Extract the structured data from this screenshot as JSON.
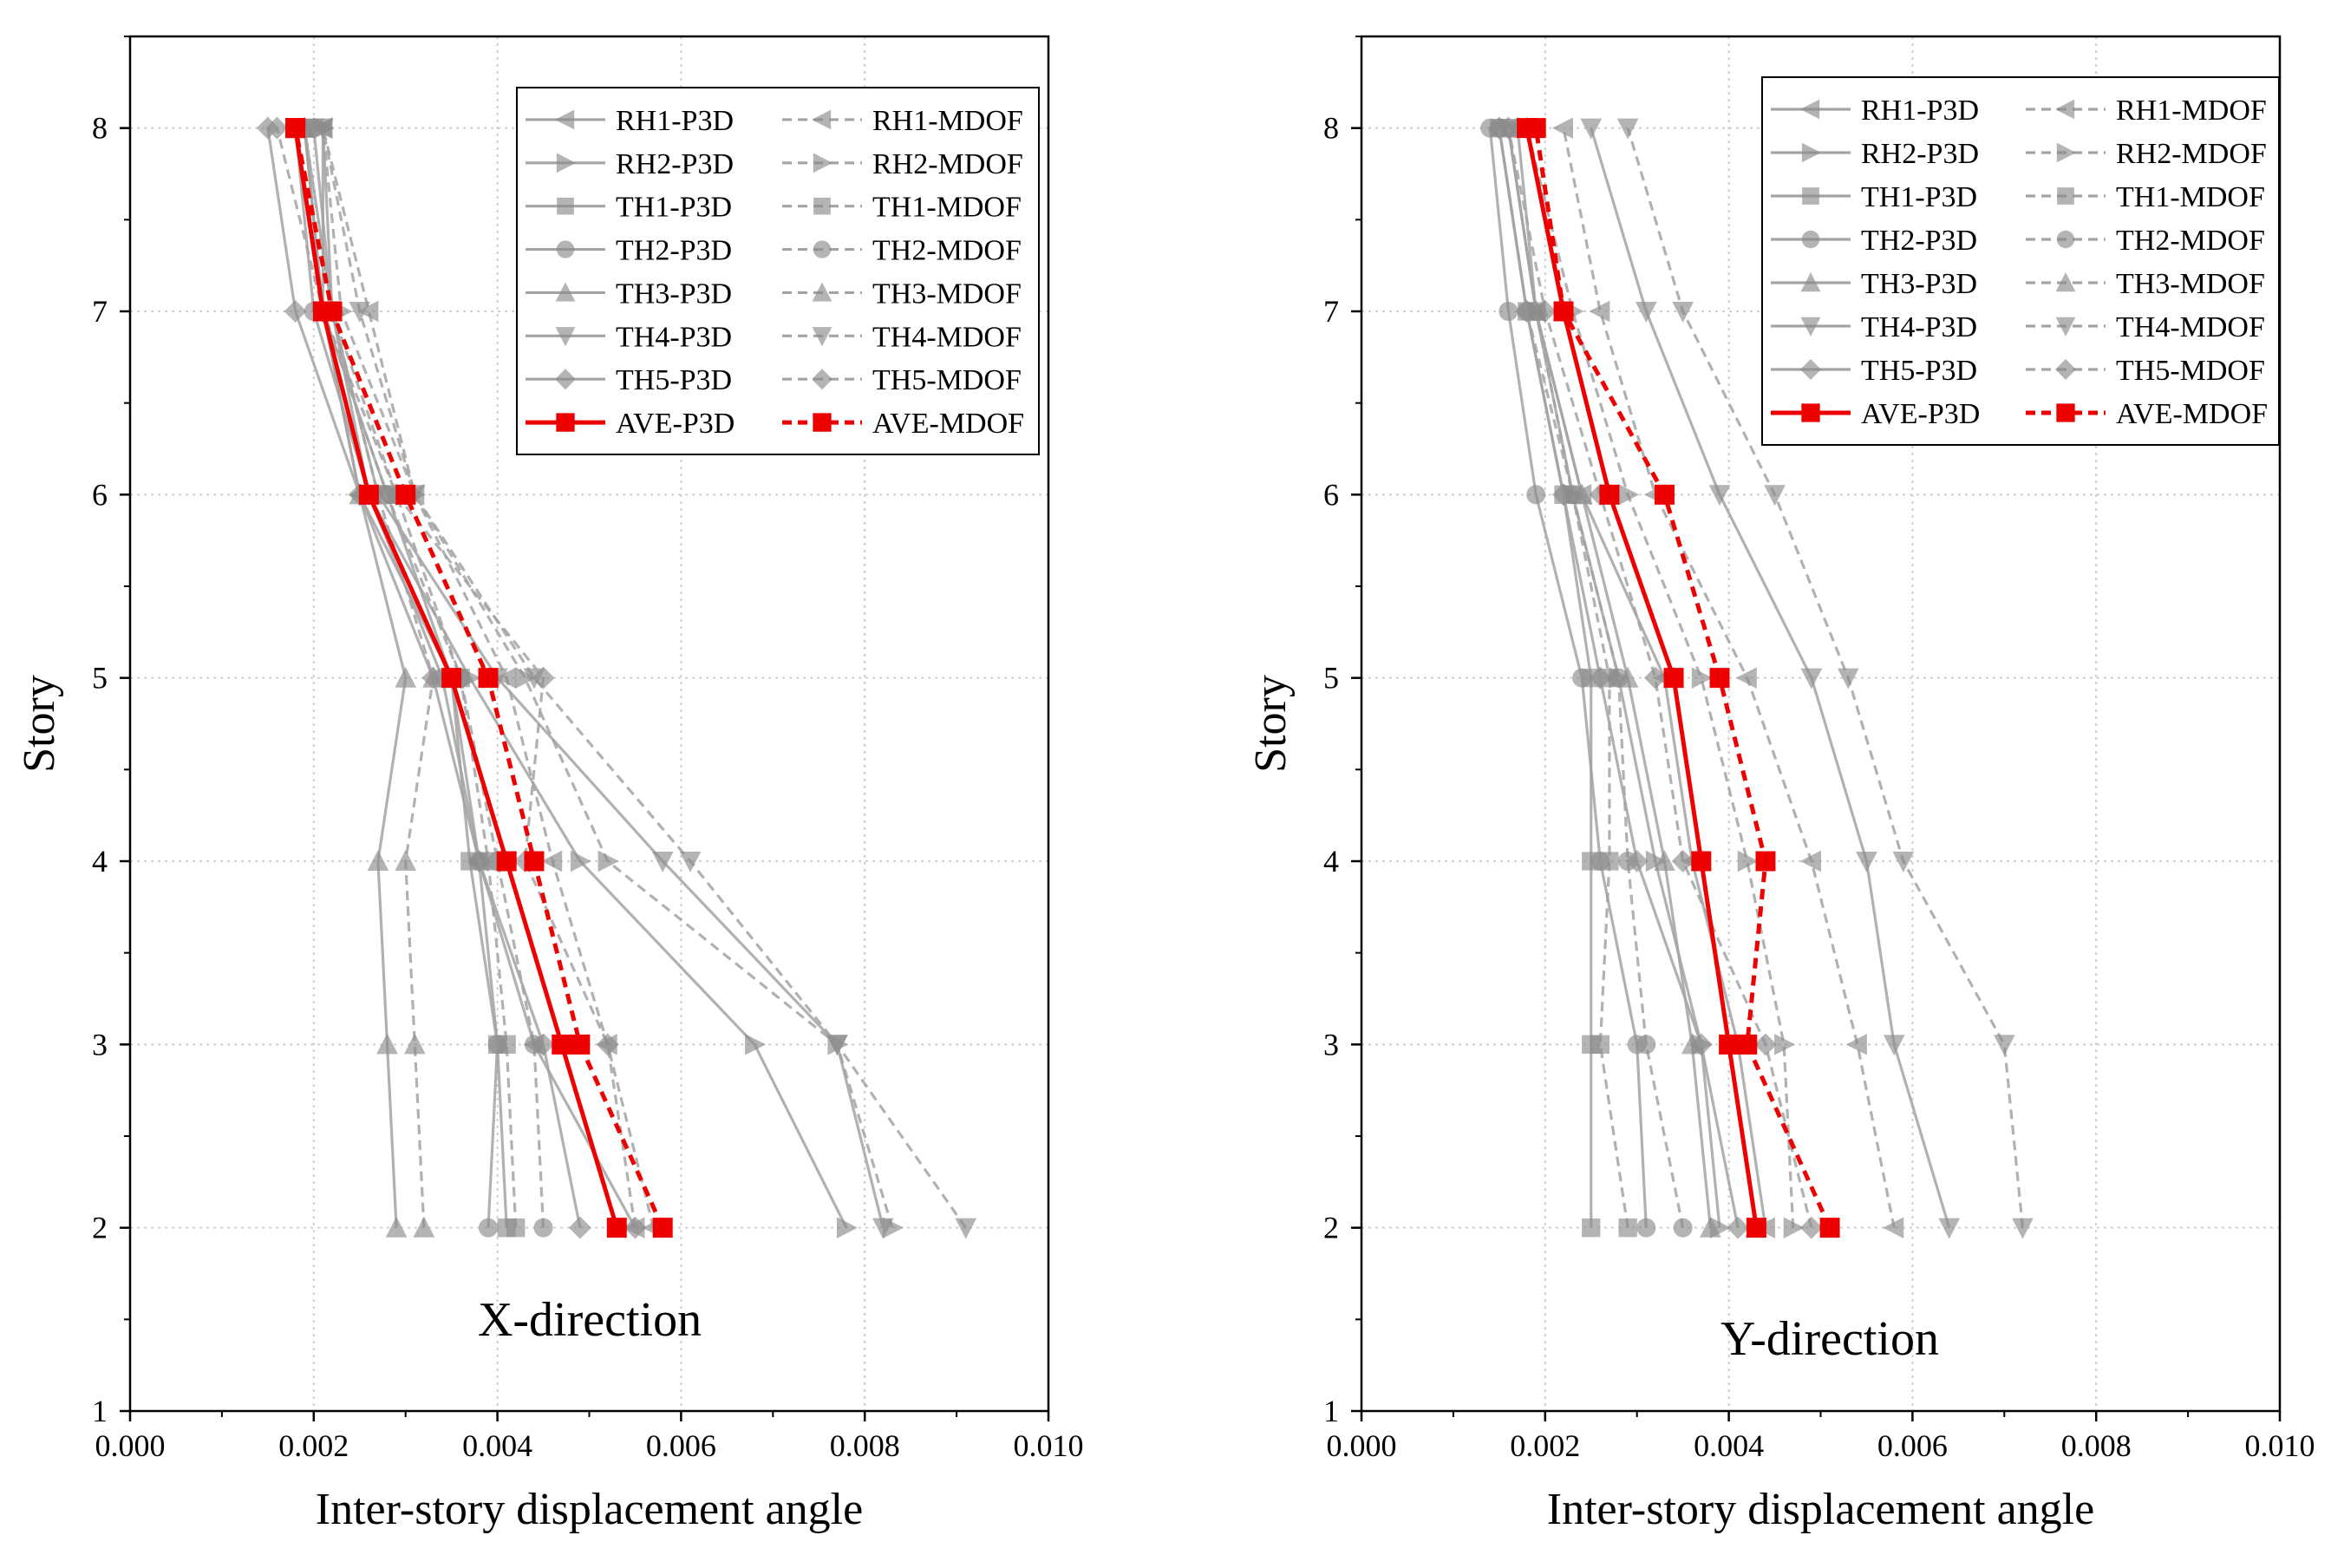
{
  "colors": {
    "gray": "#a3a3a3",
    "gray_marker": "#8c8c8c",
    "dark": "#2a2a2a",
    "red": "#ee0000",
    "grid": "#cfcfcf"
  },
  "chart_data": [
    {
      "type": "line",
      "annotation": "X-direction",
      "xlabel": "Inter-story displacement angle",
      "ylabel": "Story",
      "xlim": [
        0,
        0.01
      ],
      "ylim": [
        1,
        8.5
      ],
      "xticks": [
        "0.000",
        "0.002",
        "0.004",
        "0.006",
        "0.008",
        "0.010"
      ],
      "yticks": [
        "1",
        "2",
        "3",
        "4",
        "5",
        "6",
        "7",
        "8"
      ],
      "grid": true,
      "legend_position": "top-right",
      "stories": [
        2,
        3,
        4,
        5,
        6,
        7,
        8
      ],
      "series": [
        {
          "name": "RH1-P3D",
          "marker": "triangle-left",
          "style": "solid",
          "values": [
            0.0055,
            0.0044,
            0.0038,
            0.0035,
            0.0025,
            0.0021,
            0.0021
          ]
        },
        {
          "name": "RH1-MDOF",
          "marker": "triangle-left",
          "style": "dashed",
          "values": [
            0.0057,
            0.0052,
            0.0046,
            0.0041,
            0.0031,
            0.0026,
            0.0021
          ]
        },
        {
          "name": "RH2-P3D",
          "marker": "triangle-right",
          "style": "solid",
          "values": [
            0.0078,
            0.0068,
            0.0049,
            0.0037,
            0.0026,
            0.0022,
            0.0021
          ]
        },
        {
          "name": "RH2-MDOF",
          "marker": "triangle-right",
          "style": "dashed",
          "values": [
            0.0083,
            0.0077,
            0.0052,
            0.0043,
            0.0031,
            0.0023,
            0.0021
          ]
        },
        {
          "name": "TH1-P3D",
          "marker": "square",
          "style": "solid",
          "values": [
            0.0041,
            0.004,
            0.0037,
            0.0035,
            0.0028,
            0.0021,
            0.0019
          ]
        },
        {
          "name": "TH1-MDOF",
          "marker": "square",
          "style": "dashed",
          "values": [
            0.0042,
            0.0041,
            0.0039,
            0.0036,
            0.0029,
            0.0022,
            0.0019
          ]
        },
        {
          "name": "TH2-P3D",
          "marker": "circle",
          "style": "solid",
          "values": [
            0.0039,
            0.004,
            0.0038,
            0.0034,
            0.0026,
            0.002,
            0.0018
          ]
        },
        {
          "name": "TH2-MDOF",
          "marker": "circle",
          "style": "dashed",
          "values": [
            0.0045,
            0.0044,
            0.004,
            0.0036,
            0.0028,
            0.0021,
            0.0018
          ]
        },
        {
          "name": "TH3-P3D",
          "marker": "triangle-up",
          "style": "solid",
          "values": [
            0.0029,
            0.0028,
            0.0027,
            0.003,
            0.0025,
            0.0021,
            0.0019
          ]
        },
        {
          "name": "TH3-MDOF",
          "marker": "triangle-up",
          "style": "dashed",
          "values": [
            0.0032,
            0.0031,
            0.003,
            0.0033,
            0.0027,
            0.0022,
            0.0019
          ]
        },
        {
          "name": "TH4-P3D",
          "marker": "triangle-down",
          "style": "solid",
          "values": [
            0.0082,
            0.0077,
            0.0058,
            0.004,
            0.0027,
            0.0022,
            0.002
          ]
        },
        {
          "name": "TH4-MDOF",
          "marker": "triangle-down",
          "style": "dashed",
          "values": [
            0.0091,
            0.0077,
            0.0061,
            0.0044,
            0.0031,
            0.0025,
            0.0021
          ]
        },
        {
          "name": "TH5-P3D",
          "marker": "diamond",
          "style": "solid",
          "values": [
            0.0049,
            0.0045,
            0.0038,
            0.0033,
            0.0025,
            0.0018,
            0.0015
          ]
        },
        {
          "name": "TH5-MDOF",
          "marker": "diamond",
          "style": "dashed",
          "values": [
            0.0055,
            0.0052,
            0.0043,
            0.0045,
            0.0029,
            0.0021,
            0.0016
          ]
        },
        {
          "name": "AVE-P3D",
          "marker": "square",
          "style": "solid",
          "emphasis": true,
          "values": [
            0.0053,
            0.0047,
            0.0041,
            0.0035,
            0.0026,
            0.0021,
            0.0018
          ]
        },
        {
          "name": "AVE-MDOF",
          "marker": "square",
          "style": "dashed",
          "emphasis": true,
          "values": [
            0.0058,
            0.0049,
            0.0044,
            0.0039,
            0.003,
            0.0022,
            0.0018
          ]
        }
      ]
    },
    {
      "type": "line",
      "annotation": "Y-direction",
      "xlabel": "Inter-story displacement angle",
      "ylabel": "Story",
      "xlim": [
        0,
        0.01
      ],
      "ylim": [
        1,
        8.5
      ],
      "xticks": [
        "0.000",
        "0.002",
        "0.004",
        "0.006",
        "0.008",
        "0.010"
      ],
      "yticks": [
        "1",
        "2",
        "3",
        "4",
        "5",
        "6",
        "7",
        "8"
      ],
      "grid": true,
      "legend_position": "top-right",
      "stories": [
        2,
        3,
        4,
        5,
        6,
        7,
        8
      ],
      "series": [
        {
          "name": "RH1-P3D",
          "marker": "triangle-left",
          "style": "solid",
          "values": [
            0.0044,
            0.0041,
            0.0036,
            0.0033,
            0.0024,
            0.0019,
            0.0016
          ]
        },
        {
          "name": "RH1-MDOF",
          "marker": "triangle-left",
          "style": "dashed",
          "values": [
            0.0058,
            0.0054,
            0.0049,
            0.0042,
            0.0032,
            0.0026,
            0.0022
          ]
        },
        {
          "name": "RH2-P3D",
          "marker": "triangle-right",
          "style": "solid",
          "values": [
            0.0039,
            0.0037,
            0.0032,
            0.0028,
            0.0023,
            0.0019,
            0.0016
          ]
        },
        {
          "name": "RH2-MDOF",
          "marker": "triangle-right",
          "style": "dashed",
          "values": [
            0.0047,
            0.0046,
            0.0042,
            0.0037,
            0.0029,
            0.0023,
            0.0018
          ]
        },
        {
          "name": "TH1-P3D",
          "marker": "square",
          "style": "solid",
          "values": [
            0.0025,
            0.0025,
            0.0025,
            0.0025,
            0.0022,
            0.0018,
            0.0015
          ]
        },
        {
          "name": "TH1-MDOF",
          "marker": "square",
          "style": "dashed",
          "values": [
            0.0029,
            0.0026,
            0.0027,
            0.0027,
            0.0023,
            0.0019,
            0.0016
          ]
        },
        {
          "name": "TH2-P3D",
          "marker": "circle",
          "style": "solid",
          "values": [
            0.0031,
            0.003,
            0.0026,
            0.0024,
            0.0019,
            0.0016,
            0.0014
          ]
        },
        {
          "name": "TH2-MDOF",
          "marker": "circle",
          "style": "dashed",
          "values": [
            0.0035,
            0.0031,
            0.0029,
            0.0028,
            0.0023,
            0.0018,
            0.0015
          ]
        },
        {
          "name": "TH3-P3D",
          "marker": "triangle-up",
          "style": "solid",
          "values": [
            0.0038,
            0.0036,
            0.0033,
            0.0029,
            0.0024,
            0.0019,
            0.0017
          ]
        },
        {
          "name": "TH3-MDOF",
          "marker": "triangle-up",
          "style": "dashed",
          "values": [
            0.0043,
            0.004,
            0.0037,
            0.0034,
            0.0027,
            0.0022,
            0.0018
          ]
        },
        {
          "name": "TH4-P3D",
          "marker": "triangle-down",
          "style": "solid",
          "values": [
            0.0064,
            0.0058,
            0.0055,
            0.0049,
            0.0039,
            0.0031,
            0.0025
          ]
        },
        {
          "name": "TH4-MDOF",
          "marker": "triangle-down",
          "style": "dashed",
          "values": [
            0.0072,
            0.007,
            0.0059,
            0.0053,
            0.0045,
            0.0035,
            0.0029
          ]
        },
        {
          "name": "TH5-P3D",
          "marker": "diamond",
          "style": "solid",
          "values": [
            0.0041,
            0.0037,
            0.003,
            0.0026,
            0.0022,
            0.0018,
            0.0015
          ]
        },
        {
          "name": "TH5-MDOF",
          "marker": "diamond",
          "style": "dashed",
          "values": [
            0.0049,
            0.0044,
            0.0035,
            0.0032,
            0.0026,
            0.002,
            0.0016
          ]
        },
        {
          "name": "AVE-P3D",
          "marker": "square",
          "style": "solid",
          "emphasis": true,
          "values": [
            0.0043,
            0.004,
            0.0037,
            0.0034,
            0.0027,
            0.0022,
            0.0018
          ]
        },
        {
          "name": "AVE-MDOF",
          "marker": "square",
          "style": "dashed",
          "emphasis": true,
          "values": [
            0.0051,
            0.0042,
            0.0044,
            0.0039,
            0.0033,
            0.0022,
            0.0019
          ]
        }
      ]
    }
  ]
}
